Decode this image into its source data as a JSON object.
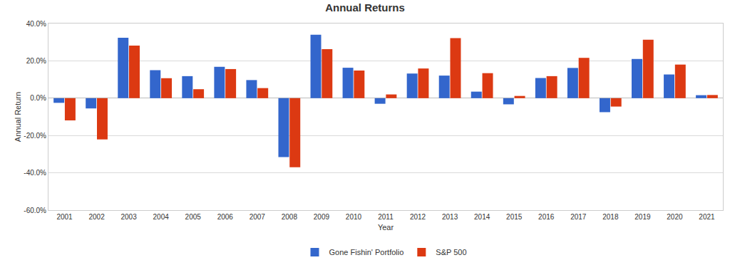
{
  "chart_data": {
    "type": "bar",
    "title": "Annual Returns",
    "x_label": "Year",
    "y_label": "Annual Return",
    "categories": [
      "2001",
      "2002",
      "2003",
      "2004",
      "2005",
      "2006",
      "2007",
      "2008",
      "2009",
      "2010",
      "2011",
      "2012",
      "2013",
      "2014",
      "2015",
      "2016",
      "2017",
      "2018",
      "2019",
      "2020",
      "2021"
    ],
    "series": [
      {
        "name": "Gone Fishin' Portfolio",
        "color": "#3366cc",
        "values": [
          -2.5,
          -5.5,
          32.4,
          15.0,
          11.8,
          16.8,
          9.7,
          -31.6,
          34.0,
          16.3,
          -3.0,
          13.2,
          12.1,
          3.5,
          -3.3,
          10.8,
          16.2,
          -7.5,
          21.0,
          12.7,
          1.6
        ]
      },
      {
        "name": "S&P 500",
        "color": "#dc3912",
        "values": [
          -11.9,
          -22.1,
          28.2,
          10.7,
          4.8,
          15.6,
          5.4,
          -37.0,
          26.3,
          14.8,
          2.0,
          15.9,
          32.2,
          13.4,
          1.2,
          11.8,
          21.6,
          -4.5,
          31.3,
          18.0,
          1.7
        ]
      }
    ],
    "ylim": [
      -60,
      40
    ],
    "yticks": [
      {
        "value": -60,
        "label": "-60.0%"
      },
      {
        "value": -40,
        "label": "-40.0%"
      },
      {
        "value": -20,
        "label": "-20.0%"
      },
      {
        "value": 0,
        "label": "0.0%"
      },
      {
        "value": 20,
        "label": "20.0%"
      },
      {
        "value": 40,
        "label": "40.0%"
      }
    ],
    "grid": true,
    "legend": "bottom"
  }
}
